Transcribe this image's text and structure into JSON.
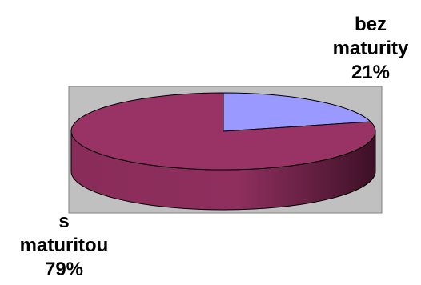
{
  "chart_data": {
    "type": "pie",
    "title": "",
    "style": "3d-pie",
    "plot_area": {
      "background": "#c0c0c0",
      "border": "#808080"
    },
    "slices": [
      {
        "label_lines": [
          "bez",
          "maturity"
        ],
        "value": 21,
        "value_text": "21%",
        "color": "#9999ff",
        "side_color": "#6666cc"
      },
      {
        "label_lines": [
          "s",
          "maturitou"
        ],
        "value": 79,
        "value_text": "79%",
        "color": "#993366",
        "side_color": "#6b2346"
      }
    ]
  }
}
